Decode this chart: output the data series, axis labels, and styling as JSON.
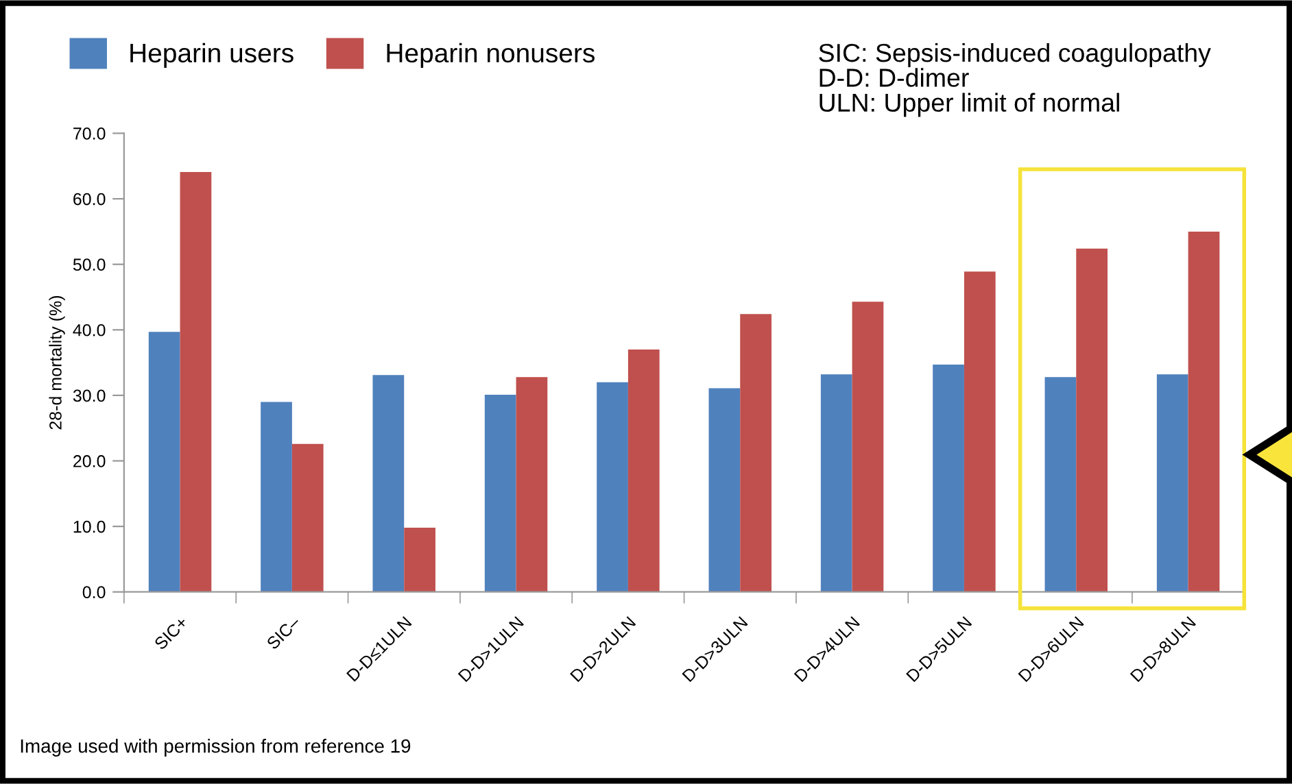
{
  "chart_data": {
    "type": "bar",
    "ylabel": "28-d mortality (%)",
    "categories": [
      "SIC+",
      "SIC–",
      "D-D≤1ULN",
      "D-D>1ULN",
      "D-D>2ULN",
      "D-D>3ULN",
      "D-D>4ULN",
      "D-D>5ULN",
      "D-D>6ULN",
      "D-D>8ULN"
    ],
    "series": [
      {
        "name": "Heparin users",
        "color": "#4f81bd",
        "values": [
          39.7,
          29.0,
          33.1,
          30.1,
          32.0,
          31.1,
          33.2,
          34.7,
          32.8,
          33.2
        ]
      },
      {
        "name": "Heparin nonusers",
        "color": "#c0504d",
        "values": [
          64.1,
          22.6,
          9.8,
          32.8,
          37.0,
          42.4,
          44.3,
          48.9,
          52.4,
          55.0
        ]
      }
    ],
    "ylim": [
      0,
      70
    ],
    "yticks": [
      {
        "value": 0,
        "label": "0.0"
      },
      {
        "value": 10,
        "label": "10.0"
      },
      {
        "value": 20,
        "label": "20.0"
      },
      {
        "value": 30,
        "label": "30.0"
      },
      {
        "value": 40,
        "label": "40.0"
      },
      {
        "value": 50,
        "label": "50.0"
      },
      {
        "value": 60,
        "label": "60.0"
      },
      {
        "value": 70,
        "label": "70.0"
      }
    ],
    "grid": false,
    "legend": "top left",
    "annotations": [
      "SIC: Sepsis-induced coagulopathy\nD-D: D-dimer\nULN: Upper limit of normal",
      "Image used with permission from reference 19"
    ]
  }
}
